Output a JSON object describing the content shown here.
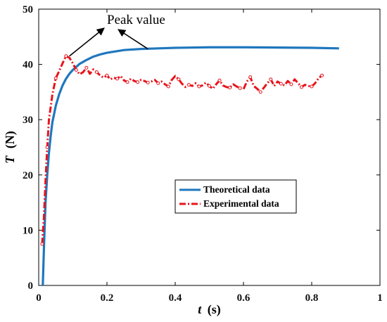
{
  "chart_data": {
    "type": "line",
    "xlabel": {
      "var": "t",
      "unit": "(s)"
    },
    "ylabel": {
      "var": "T",
      "unit": "(N)"
    },
    "xlim": [
      0,
      1
    ],
    "ylim": [
      0,
      50
    ],
    "xticks": [
      {
        "value": 0,
        "label": "0"
      },
      {
        "value": 0.2,
        "label": "0.2"
      },
      {
        "value": 0.4,
        "label": "0.4"
      },
      {
        "value": 0.6,
        "label": "0.6"
      },
      {
        "value": 0.8,
        "label": "0.8"
      },
      {
        "value": 1,
        "label": "1"
      }
    ],
    "yticks": [
      {
        "value": 0,
        "label": "0"
      },
      {
        "value": 10,
        "label": "10"
      },
      {
        "value": 20,
        "label": "20"
      },
      {
        "value": 30,
        "label": "30"
      },
      {
        "value": 40,
        "label": "40"
      },
      {
        "value": 50,
        "label": "50"
      }
    ],
    "grid": false,
    "legend_position": "center-right",
    "annotation": {
      "text": "Peak value",
      "targets": [
        {
          "x": 0.09,
          "y": 41.5
        },
        {
          "x": 0.32,
          "y": 42.8
        }
      ]
    },
    "series": [
      {
        "name": "Theoretical data",
        "color": "#1f77bd",
        "style": "solid",
        "x": [
          0.012,
          0.016,
          0.02,
          0.025,
          0.03,
          0.035,
          0.04,
          0.05,
          0.06,
          0.07,
          0.08,
          0.09,
          0.1,
          0.12,
          0.14,
          0.16,
          0.18,
          0.2,
          0.25,
          0.3,
          0.35,
          0.4,
          0.5,
          0.6,
          0.7,
          0.8,
          0.88
        ],
        "y": [
          0,
          8,
          15,
          20,
          24,
          27,
          29.5,
          32.5,
          34.6,
          36.2,
          37.4,
          38.3,
          39.0,
          40.1,
          40.8,
          41.4,
          41.8,
          42.1,
          42.6,
          42.8,
          42.9,
          43.0,
          43.1,
          43.1,
          43.05,
          43.0,
          42.9
        ]
      },
      {
        "name": "Experimental data",
        "color": "#e8141c",
        "style": "dash-dot",
        "markers": "open-circle",
        "x": [
          0.01,
          0.015,
          0.02,
          0.025,
          0.03,
          0.04,
          0.05,
          0.06,
          0.07,
          0.08,
          0.09,
          0.1,
          0.11,
          0.12,
          0.13,
          0.14,
          0.15,
          0.16,
          0.17,
          0.18,
          0.19,
          0.2,
          0.21,
          0.22,
          0.23,
          0.24,
          0.25,
          0.26,
          0.27,
          0.28,
          0.29,
          0.3,
          0.31,
          0.32,
          0.33,
          0.34,
          0.35,
          0.36,
          0.37,
          0.38,
          0.39,
          0.4,
          0.41,
          0.42,
          0.43,
          0.44,
          0.45,
          0.46,
          0.47,
          0.48,
          0.49,
          0.5,
          0.51,
          0.52,
          0.53,
          0.54,
          0.55,
          0.56,
          0.57,
          0.58,
          0.59,
          0.6,
          0.61,
          0.62,
          0.63,
          0.64,
          0.65,
          0.66,
          0.67,
          0.68,
          0.69,
          0.7,
          0.71,
          0.72,
          0.73,
          0.74,
          0.75,
          0.76,
          0.77,
          0.78,
          0.79,
          0.8,
          0.81,
          0.82,
          0.83
        ],
        "y": [
          7.5,
          12,
          19,
          25,
          30,
          34.5,
          37.5,
          38.8,
          40.2,
          41.5,
          41.2,
          40.2,
          39.0,
          38.2,
          38.6,
          39.4,
          38.3,
          39.1,
          38.6,
          38.0,
          37.6,
          38.0,
          37.3,
          37.6,
          37.4,
          37.9,
          37.1,
          36.8,
          37.4,
          37.0,
          36.8,
          37.2,
          37.0,
          36.7,
          36.9,
          37.2,
          36.6,
          36.9,
          36.4,
          36.0,
          37.2,
          37.9,
          37.3,
          36.5,
          35.9,
          36.3,
          36.1,
          36.6,
          36.0,
          36.2,
          36.7,
          36.1,
          35.6,
          36.4,
          37.1,
          36.2,
          35.9,
          35.8,
          36.4,
          36.0,
          35.7,
          35.5,
          36.9,
          37.7,
          36.1,
          35.6,
          35.0,
          35.8,
          36.6,
          37.3,
          36.1,
          36.9,
          36.5,
          36.2,
          37.0,
          36.4,
          37.3,
          36.6,
          35.9,
          36.3,
          36.1,
          36.0,
          36.6,
          37.5,
          38.0
        ]
      }
    ]
  }
}
